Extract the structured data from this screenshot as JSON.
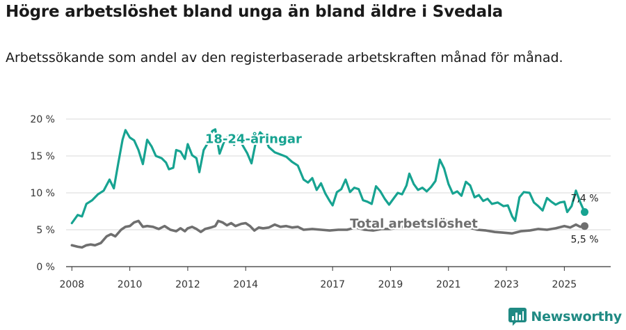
{
  "title": "Högre arbetslöshet bland unga än bland äldre i Svedala",
  "subtitle": "Arbetssökande som andel av den registerbaserade arbetskraften månad för månad.",
  "brand": {
    "name": "Newsworthy",
    "color": "#1f8a83"
  },
  "chart_data": {
    "type": "line",
    "title": "Högre arbetslöshet bland unga än bland äldre i Svedala",
    "ylim": [
      0,
      20
    ],
    "xlim": [
      2007.8,
      2026.6
    ],
    "y_ticks": [
      0,
      5,
      10,
      15,
      20
    ],
    "y_tick_labels": [
      "0 %",
      "5 %",
      "10 %",
      "15 %",
      "20 %"
    ],
    "x_ticks": [
      2008,
      2010,
      2012,
      2014,
      2017,
      2019,
      2021,
      2023,
      2025
    ],
    "x_tick_labels": [
      "2008",
      "2010",
      "2012",
      "2014",
      "2017",
      "2019",
      "2021",
      "2023",
      "2025"
    ],
    "grid": "horizontal",
    "series": [
      {
        "name": "18-24-åringar",
        "label": "18-24-åringar",
        "color": "#17a391",
        "end_label": "7,4 %",
        "points": [
          [
            2008.0,
            5.9
          ],
          [
            2008.2,
            7.0
          ],
          [
            2008.35,
            6.8
          ],
          [
            2008.5,
            8.5
          ],
          [
            2008.7,
            9.0
          ],
          [
            2008.9,
            9.8
          ],
          [
            2009.1,
            10.3
          ],
          [
            2009.3,
            11.8
          ],
          [
            2009.45,
            10.6
          ],
          [
            2009.6,
            14.0
          ],
          [
            2009.75,
            17.2
          ],
          [
            2009.85,
            18.5
          ],
          [
            2010.0,
            17.5
          ],
          [
            2010.15,
            17.1
          ],
          [
            2010.3,
            15.8
          ],
          [
            2010.45,
            13.9
          ],
          [
            2010.6,
            17.2
          ],
          [
            2010.75,
            16.3
          ],
          [
            2010.9,
            15.0
          ],
          [
            2011.1,
            14.7
          ],
          [
            2011.25,
            14.1
          ],
          [
            2011.35,
            13.2
          ],
          [
            2011.5,
            13.4
          ],
          [
            2011.6,
            15.8
          ],
          [
            2011.75,
            15.6
          ],
          [
            2011.9,
            14.6
          ],
          [
            2012.0,
            16.6
          ],
          [
            2012.15,
            15.1
          ],
          [
            2012.3,
            14.7
          ],
          [
            2012.4,
            12.8
          ],
          [
            2012.55,
            15.8
          ],
          [
            2012.7,
            16.8
          ],
          [
            2012.85,
            18.4
          ],
          [
            2012.95,
            18.6
          ],
          [
            2013.1,
            15.3
          ],
          [
            2013.25,
            16.9
          ],
          [
            2013.45,
            18.0
          ],
          [
            2013.6,
            16.5
          ],
          [
            2013.75,
            17.8
          ],
          [
            2013.9,
            16.4
          ],
          [
            2014.05,
            15.4
          ],
          [
            2014.2,
            14.0
          ],
          [
            2014.35,
            16.9
          ],
          [
            2014.5,
            18.2
          ],
          [
            2014.65,
            17.6
          ],
          [
            2014.8,
            16.2
          ],
          [
            2015.0,
            15.5
          ],
          [
            2015.2,
            15.2
          ],
          [
            2015.4,
            14.9
          ],
          [
            2015.6,
            14.2
          ],
          [
            2015.8,
            13.7
          ],
          [
            2016.0,
            11.8
          ],
          [
            2016.15,
            11.4
          ],
          [
            2016.3,
            12.0
          ],
          [
            2016.45,
            10.4
          ],
          [
            2016.6,
            11.3
          ],
          [
            2016.75,
            9.9
          ],
          [
            2016.9,
            8.9
          ],
          [
            2017.0,
            8.3
          ],
          [
            2017.15,
            10.1
          ],
          [
            2017.3,
            10.5
          ],
          [
            2017.45,
            11.8
          ],
          [
            2017.6,
            10.1
          ],
          [
            2017.75,
            10.7
          ],
          [
            2017.9,
            10.5
          ],
          [
            2018.05,
            9.0
          ],
          [
            2018.2,
            8.8
          ],
          [
            2018.35,
            8.5
          ],
          [
            2018.5,
            10.9
          ],
          [
            2018.65,
            10.2
          ],
          [
            2018.8,
            9.2
          ],
          [
            2018.95,
            8.4
          ],
          [
            2019.1,
            9.2
          ],
          [
            2019.25,
            10.0
          ],
          [
            2019.4,
            9.8
          ],
          [
            2019.55,
            11.0
          ],
          [
            2019.65,
            12.6
          ],
          [
            2019.8,
            11.2
          ],
          [
            2019.95,
            10.4
          ],
          [
            2020.1,
            10.7
          ],
          [
            2020.25,
            10.2
          ],
          [
            2020.4,
            10.8
          ],
          [
            2020.55,
            11.6
          ],
          [
            2020.7,
            14.5
          ],
          [
            2020.85,
            13.3
          ],
          [
            2021.0,
            11.2
          ],
          [
            2021.15,
            9.9
          ],
          [
            2021.3,
            10.2
          ],
          [
            2021.45,
            9.6
          ],
          [
            2021.6,
            11.5
          ],
          [
            2021.75,
            11.0
          ],
          [
            2021.9,
            9.4
          ],
          [
            2022.05,
            9.7
          ],
          [
            2022.2,
            8.9
          ],
          [
            2022.35,
            9.2
          ],
          [
            2022.5,
            8.5
          ],
          [
            2022.7,
            8.7
          ],
          [
            2022.9,
            8.2
          ],
          [
            2023.05,
            8.3
          ],
          [
            2023.2,
            6.8
          ],
          [
            2023.3,
            6.2
          ],
          [
            2023.45,
            9.4
          ],
          [
            2023.6,
            10.1
          ],
          [
            2023.8,
            10.0
          ],
          [
            2023.95,
            8.7
          ],
          [
            2024.1,
            8.2
          ],
          [
            2024.25,
            7.6
          ],
          [
            2024.4,
            9.3
          ],
          [
            2024.55,
            8.8
          ],
          [
            2024.7,
            8.4
          ],
          [
            2024.85,
            8.7
          ],
          [
            2025.0,
            8.8
          ],
          [
            2025.1,
            7.4
          ],
          [
            2025.25,
            8.2
          ],
          [
            2025.4,
            10.3
          ],
          [
            2025.55,
            8.7
          ],
          [
            2025.7,
            7.4
          ]
        ]
      },
      {
        "name": "Total arbetslöshet",
        "label": "Total arbetslöshet",
        "color": "#6f6f6f",
        "end_label": "5,5 %",
        "points": [
          [
            2008.0,
            2.9
          ],
          [
            2008.2,
            2.7
          ],
          [
            2008.35,
            2.6
          ],
          [
            2008.5,
            2.9
          ],
          [
            2008.65,
            3.0
          ],
          [
            2008.8,
            2.9
          ],
          [
            2009.0,
            3.2
          ],
          [
            2009.2,
            4.1
          ],
          [
            2009.35,
            4.4
          ],
          [
            2009.5,
            4.1
          ],
          [
            2009.7,
            5.0
          ],
          [
            2009.85,
            5.4
          ],
          [
            2010.0,
            5.5
          ],
          [
            2010.15,
            6.0
          ],
          [
            2010.3,
            6.2
          ],
          [
            2010.45,
            5.4
          ],
          [
            2010.6,
            5.5
          ],
          [
            2010.8,
            5.4
          ],
          [
            2011.0,
            5.1
          ],
          [
            2011.2,
            5.5
          ],
          [
            2011.4,
            5.0
          ],
          [
            2011.6,
            4.8
          ],
          [
            2011.75,
            5.2
          ],
          [
            2011.9,
            4.8
          ],
          [
            2012.0,
            5.2
          ],
          [
            2012.15,
            5.4
          ],
          [
            2012.3,
            5.1
          ],
          [
            2012.45,
            4.7
          ],
          [
            2012.6,
            5.1
          ],
          [
            2012.8,
            5.3
          ],
          [
            2012.95,
            5.5
          ],
          [
            2013.05,
            6.2
          ],
          [
            2013.2,
            6.0
          ],
          [
            2013.35,
            5.6
          ],
          [
            2013.5,
            5.9
          ],
          [
            2013.65,
            5.5
          ],
          [
            2013.85,
            5.8
          ],
          [
            2014.0,
            5.9
          ],
          [
            2014.15,
            5.5
          ],
          [
            2014.3,
            4.9
          ],
          [
            2014.45,
            5.3
          ],
          [
            2014.6,
            5.2
          ],
          [
            2014.8,
            5.3
          ],
          [
            2015.0,
            5.7
          ],
          [
            2015.2,
            5.4
          ],
          [
            2015.4,
            5.5
          ],
          [
            2015.6,
            5.3
          ],
          [
            2015.8,
            5.4
          ],
          [
            2016.0,
            5.0
          ],
          [
            2016.3,
            5.1
          ],
          [
            2016.6,
            5.0
          ],
          [
            2016.9,
            4.9
          ],
          [
            2017.2,
            5.0
          ],
          [
            2017.5,
            5.0
          ],
          [
            2017.8,
            5.3
          ],
          [
            2018.1,
            5.0
          ],
          [
            2018.4,
            4.9
          ],
          [
            2018.7,
            5.1
          ],
          [
            2019.0,
            5.1
          ],
          [
            2019.3,
            5.3
          ],
          [
            2019.6,
            5.5
          ],
          [
            2019.9,
            5.6
          ],
          [
            2020.2,
            5.8
          ],
          [
            2020.5,
            6.0
          ],
          [
            2020.8,
            6.4
          ],
          [
            2021.1,
            5.9
          ],
          [
            2021.4,
            5.6
          ],
          [
            2021.7,
            5.3
          ],
          [
            2022.0,
            5.0
          ],
          [
            2022.3,
            4.9
          ],
          [
            2022.6,
            4.7
          ],
          [
            2022.9,
            4.6
          ],
          [
            2023.2,
            4.5
          ],
          [
            2023.5,
            4.8
          ],
          [
            2023.8,
            4.9
          ],
          [
            2024.1,
            5.1
          ],
          [
            2024.4,
            5.0
          ],
          [
            2024.7,
            5.2
          ],
          [
            2025.0,
            5.5
          ],
          [
            2025.2,
            5.3
          ],
          [
            2025.4,
            5.7
          ],
          [
            2025.55,
            5.4
          ],
          [
            2025.7,
            5.5
          ]
        ]
      }
    ]
  }
}
